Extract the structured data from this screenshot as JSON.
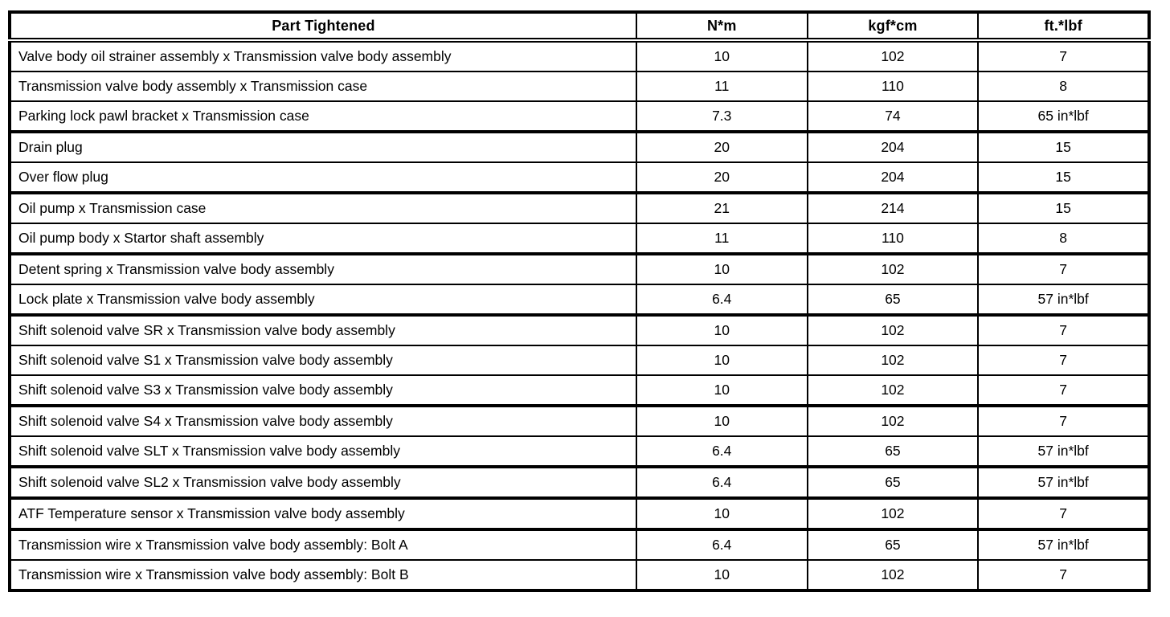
{
  "colors": {
    "background": "#ffffff",
    "text": "#000000",
    "border": "#000000"
  },
  "table": {
    "columns": {
      "part": "Part Tightened",
      "nm": "N*m",
      "kgfcm": "kgf*cm",
      "ftlbf": "ft.*lbf"
    },
    "rows": [
      {
        "part": "Valve body oil strainer assembly x Transmission valve body assembly",
        "nm": "10",
        "kgfcm": "102",
        "ftlbf": "7"
      },
      {
        "part": "Transmission valve body assembly x Transmission case",
        "nm": "11",
        "kgfcm": "110",
        "ftlbf": "8"
      },
      {
        "part": "Parking lock pawl bracket x Transmission case",
        "nm": "7.3",
        "kgfcm": "74",
        "ftlbf": "65 in*lbf"
      },
      {
        "part": "Drain plug",
        "nm": "20",
        "kgfcm": "204",
        "ftlbf": "15"
      },
      {
        "part": "Over flow plug",
        "nm": "20",
        "kgfcm": "204",
        "ftlbf": "15"
      },
      {
        "part": "Oil pump x Transmission case",
        "nm": "21",
        "kgfcm": "214",
        "ftlbf": "15"
      },
      {
        "part": "Oil pump body x Startor shaft assembly",
        "nm": "11",
        "kgfcm": "110",
        "ftlbf": "8"
      },
      {
        "part": "Detent spring x Transmission valve body assembly",
        "nm": "10",
        "kgfcm": "102",
        "ftlbf": "7"
      },
      {
        "part": "Lock plate x Transmission valve body assembly",
        "nm": "6.4",
        "kgfcm": "65",
        "ftlbf": "57 in*lbf"
      },
      {
        "part": "Shift solenoid valve SR x Transmission valve body assembly",
        "nm": "10",
        "kgfcm": "102",
        "ftlbf": "7"
      },
      {
        "part": "Shift solenoid valve S1 x Transmission valve body assembly",
        "nm": "10",
        "kgfcm": "102",
        "ftlbf": "7"
      },
      {
        "part": "Shift solenoid valve S3 x Transmission valve body assembly",
        "nm": "10",
        "kgfcm": "102",
        "ftlbf": "7"
      },
      {
        "part": "Shift solenoid valve S4 x Transmission valve body assembly",
        "nm": "10",
        "kgfcm": "102",
        "ftlbf": "7"
      },
      {
        "part": "Shift solenoid valve SLT x Transmission valve body assembly",
        "nm": "6.4",
        "kgfcm": "65",
        "ftlbf": "57 in*lbf"
      },
      {
        "part": "Shift solenoid valve SL2 x Transmission valve body assembly",
        "nm": "6.4",
        "kgfcm": "65",
        "ftlbf": "57 in*lbf"
      },
      {
        "part": "ATF Temperature sensor x Transmission valve body assembly",
        "nm": "10",
        "kgfcm": "102",
        "ftlbf": "7"
      },
      {
        "part": "Transmission wire x Transmission valve body assembly: Bolt A",
        "nm": "6.4",
        "kgfcm": "65",
        "ftlbf": "57 in*lbf"
      },
      {
        "part": "Transmission wire x Transmission valve body assembly: Bolt B",
        "nm": "10",
        "kgfcm": "102",
        "ftlbf": "7"
      }
    ]
  }
}
